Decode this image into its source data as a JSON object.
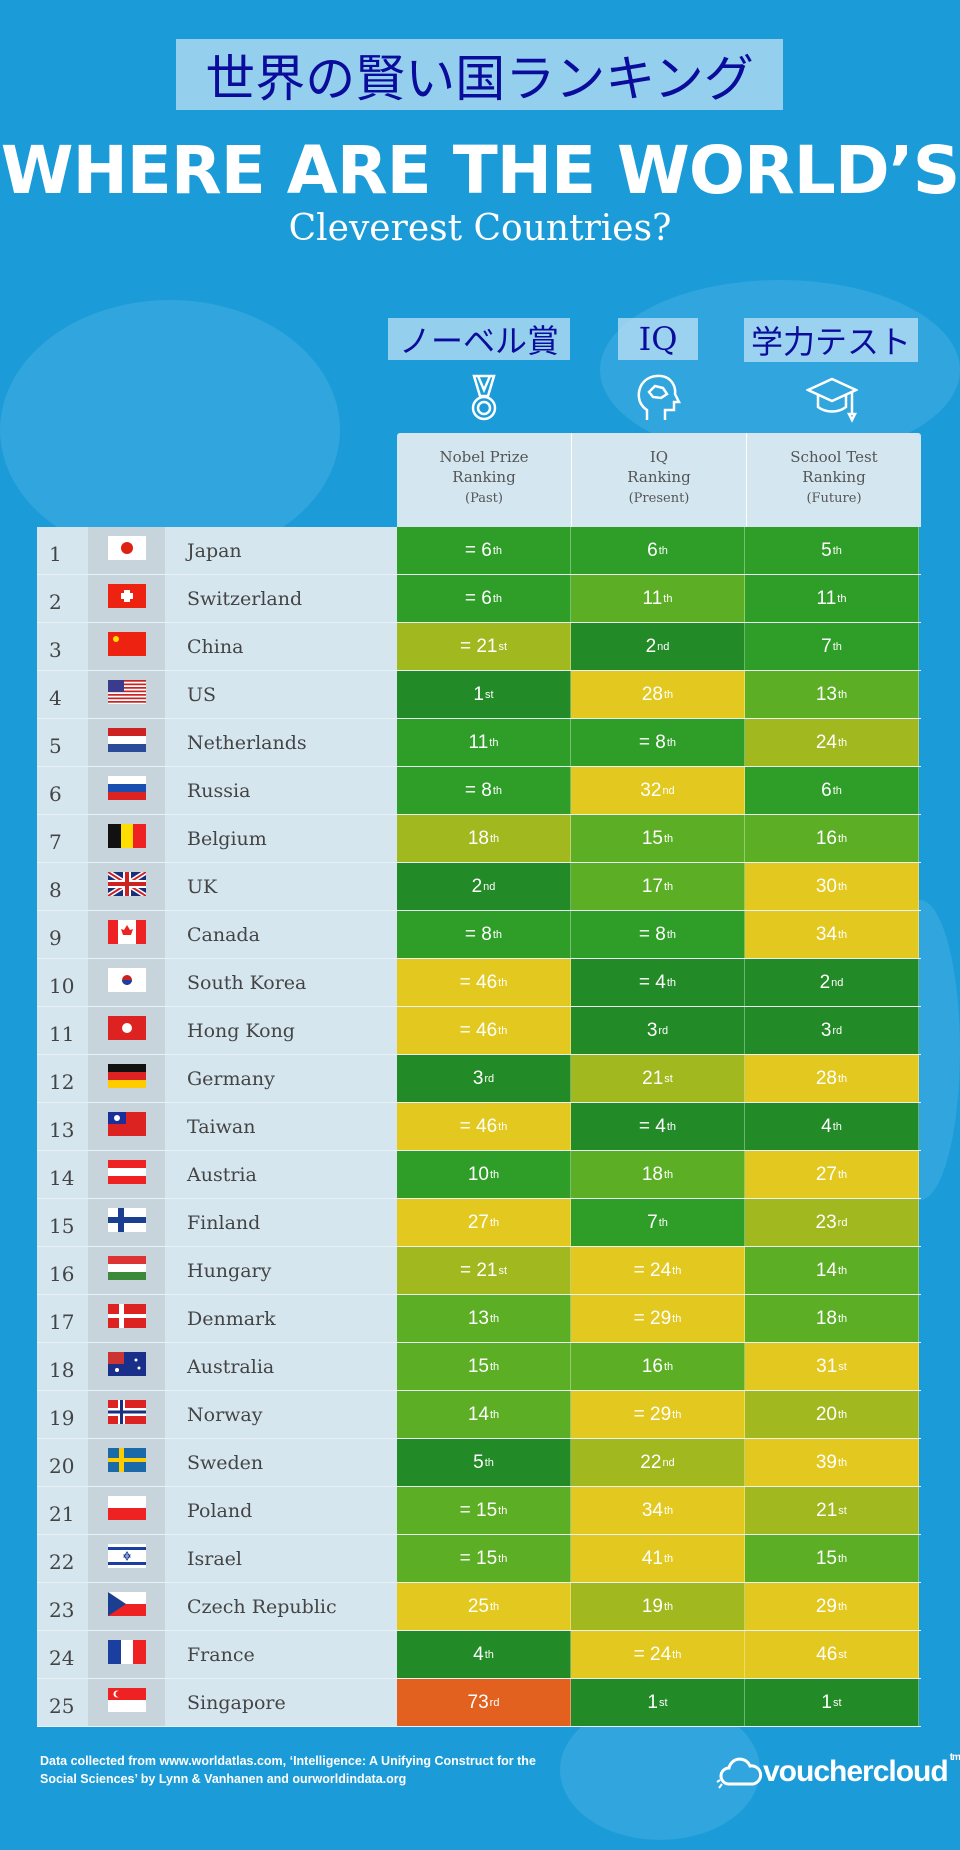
{
  "header": {
    "jp_title": "世界の賢い国ランキング",
    "title": "WHERE ARE THE WORLD’S",
    "subtitle": "Cleverest Countries?",
    "jp_columns": [
      "ノーベル賞",
      "IQ",
      "学力テスト"
    ],
    "column_icons": [
      "medal-icon",
      "brain-head-icon",
      "graduation-cap-icon"
    ],
    "columns": [
      {
        "l1": "Nobel Prize",
        "l2": "Ranking",
        "l3": "(Past)"
      },
      {
        "l1": "IQ",
        "l2": "Ranking",
        "l3": "(Present)"
      },
      {
        "l1": "School Test",
        "l2": "Ranking",
        "l3": "(Future)"
      }
    ]
  },
  "palette": {
    "dg": "#228a26",
    "g": "#2e9e28",
    "lg": "#5cae24",
    "yg": "#a1b81f",
    "y": "#e3c91f",
    "o": "#e2611f"
  },
  "rows": [
    {
      "rank": "1",
      "country": "Japan",
      "flag": "jp",
      "cells": [
        [
          "= 6",
          "th",
          "g"
        ],
        [
          "6",
          "th",
          "g"
        ],
        [
          "5",
          "th",
          "g"
        ]
      ]
    },
    {
      "rank": "2",
      "country": "Switzerland",
      "flag": "ch",
      "cells": [
        [
          "= 6",
          "th",
          "g"
        ],
        [
          "11",
          "th",
          "lg"
        ],
        [
          "11",
          "th",
          "g"
        ]
      ]
    },
    {
      "rank": "3",
      "country": "China",
      "flag": "cn",
      "cells": [
        [
          "= 21",
          "st",
          "yg"
        ],
        [
          "2",
          "nd",
          "dg"
        ],
        [
          "7",
          "th",
          "g"
        ]
      ]
    },
    {
      "rank": "4",
      "country": "US",
      "flag": "us",
      "cells": [
        [
          "1",
          "st",
          "dg"
        ],
        [
          "28",
          "th",
          "y"
        ],
        [
          "13",
          "th",
          "lg"
        ]
      ]
    },
    {
      "rank": "5",
      "country": "Netherlands",
      "flag": "nl",
      "cells": [
        [
          "11",
          "th",
          "g"
        ],
        [
          "= 8",
          "th",
          "g"
        ],
        [
          "24",
          "th",
          "yg"
        ]
      ]
    },
    {
      "rank": "6",
      "country": "Russia",
      "flag": "ru",
      "cells": [
        [
          "= 8",
          "th",
          "g"
        ],
        [
          "32",
          "nd",
          "y"
        ],
        [
          "6",
          "th",
          "g"
        ]
      ]
    },
    {
      "rank": "7",
      "country": "Belgium",
      "flag": "be",
      "cells": [
        [
          "18",
          "th",
          "yg"
        ],
        [
          "15",
          "th",
          "lg"
        ],
        [
          "16",
          "th",
          "lg"
        ]
      ]
    },
    {
      "rank": "8",
      "country": "UK",
      "flag": "uk",
      "cells": [
        [
          "2",
          "nd",
          "dg"
        ],
        [
          "17",
          "th",
          "lg"
        ],
        [
          "30",
          "th",
          "y"
        ]
      ]
    },
    {
      "rank": "9",
      "country": "Canada",
      "flag": "ca",
      "cells": [
        [
          "= 8",
          "th",
          "g"
        ],
        [
          "= 8",
          "th",
          "g"
        ],
        [
          "34",
          "th",
          "y"
        ]
      ]
    },
    {
      "rank": "10",
      "country": "South Korea",
      "flag": "kr",
      "cells": [
        [
          "= 46",
          "th",
          "y"
        ],
        [
          "= 4",
          "th",
          "dg"
        ],
        [
          "2",
          "nd",
          "dg"
        ]
      ]
    },
    {
      "rank": "11",
      "country": "Hong Kong",
      "flag": "hk",
      "cells": [
        [
          "= 46",
          "th",
          "y"
        ],
        [
          "3",
          "rd",
          "dg"
        ],
        [
          "3",
          "rd",
          "dg"
        ]
      ]
    },
    {
      "rank": "12",
      "country": "Germany",
      "flag": "de",
      "cells": [
        [
          "3",
          "rd",
          "dg"
        ],
        [
          "21",
          "st",
          "yg"
        ],
        [
          "28",
          "th",
          "y"
        ]
      ]
    },
    {
      "rank": "13",
      "country": "Taiwan",
      "flag": "tw",
      "cells": [
        [
          "= 46",
          "th",
          "y"
        ],
        [
          "= 4",
          "th",
          "dg"
        ],
        [
          "4",
          "th",
          "dg"
        ]
      ]
    },
    {
      "rank": "14",
      "country": "Austria",
      "flag": "at",
      "cells": [
        [
          "10",
          "th",
          "g"
        ],
        [
          "18",
          "th",
          "lg"
        ],
        [
          "27",
          "th",
          "y"
        ]
      ]
    },
    {
      "rank": "15",
      "country": "Finland",
      "flag": "fi",
      "cells": [
        [
          "27",
          "th",
          "y"
        ],
        [
          "7",
          "th",
          "g"
        ],
        [
          "23",
          "rd",
          "yg"
        ]
      ]
    },
    {
      "rank": "16",
      "country": "Hungary",
      "flag": "hu",
      "cells": [
        [
          "= 21",
          "st",
          "yg"
        ],
        [
          "= 24",
          "th",
          "y"
        ],
        [
          "14",
          "th",
          "lg"
        ]
      ]
    },
    {
      "rank": "17",
      "country": "Denmark",
      "flag": "dk",
      "cells": [
        [
          "13",
          "th",
          "lg"
        ],
        [
          "= 29",
          "th",
          "y"
        ],
        [
          "18",
          "th",
          "lg"
        ]
      ]
    },
    {
      "rank": "18",
      "country": "Australia",
      "flag": "au",
      "cells": [
        [
          "15",
          "th",
          "lg"
        ],
        [
          "16",
          "th",
          "lg"
        ],
        [
          "31",
          "st",
          "y"
        ]
      ]
    },
    {
      "rank": "19",
      "country": "Norway",
      "flag": "no",
      "cells": [
        [
          "14",
          "th",
          "lg"
        ],
        [
          "= 29",
          "th",
          "y"
        ],
        [
          "20",
          "th",
          "yg"
        ]
      ]
    },
    {
      "rank": "20",
      "country": "Sweden",
      "flag": "se",
      "cells": [
        [
          "5",
          "th",
          "dg"
        ],
        [
          "22",
          "nd",
          "yg"
        ],
        [
          "39",
          "th",
          "y"
        ]
      ]
    },
    {
      "rank": "21",
      "country": "Poland",
      "flag": "pl",
      "cells": [
        [
          "= 15",
          "th",
          "lg"
        ],
        [
          "34",
          "th",
          "y"
        ],
        [
          "21",
          "st",
          "yg"
        ]
      ]
    },
    {
      "rank": "22",
      "country": "Israel",
      "flag": "il",
      "cells": [
        [
          "= 15",
          "th",
          "lg"
        ],
        [
          "41",
          "th",
          "y"
        ],
        [
          "15",
          "th",
          "lg"
        ]
      ]
    },
    {
      "rank": "23",
      "country": "Czech Republic",
      "flag": "cz",
      "cells": [
        [
          "25",
          "th",
          "y"
        ],
        [
          "19",
          "th",
          "yg"
        ],
        [
          "29",
          "th",
          "y"
        ]
      ]
    },
    {
      "rank": "24",
      "country": "France",
      "flag": "fr",
      "cells": [
        [
          "4",
          "th",
          "dg"
        ],
        [
          "= 24",
          "th",
          "y"
        ],
        [
          "46",
          "st",
          "y"
        ]
      ]
    },
    {
      "rank": "25",
      "country": "Singapore",
      "flag": "sg",
      "cells": [
        [
          "73",
          "rd",
          "o"
        ],
        [
          "1",
          "st",
          "dg"
        ],
        [
          "1",
          "st",
          "dg"
        ]
      ]
    }
  ],
  "footer": {
    "source": "Data collected from www.worldatlas.com, ‘Intelligence: A Unifying Construct for the Social Sciences’ by Lynn & Vanhanen and ourworldindata.org"
  },
  "logo": {
    "text": "vouchercloud",
    "tm": "tm"
  }
}
